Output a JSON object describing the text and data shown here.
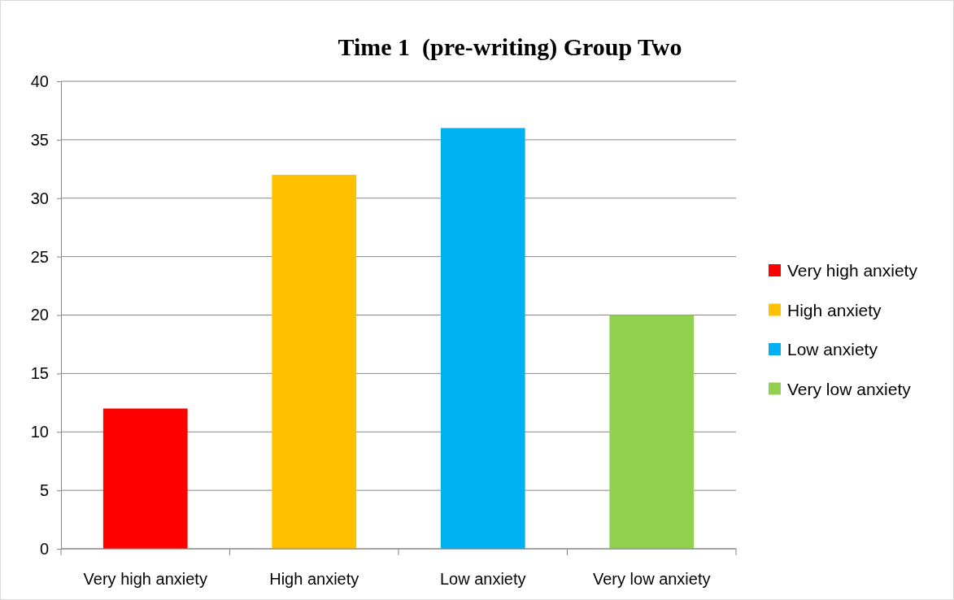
{
  "chart_data": {
    "type": "bar",
    "title": "Time 1  (pre-writing) Group Two",
    "categories": [
      "Very high anxiety",
      "High anxiety",
      "Low anxiety",
      "Very low anxiety"
    ],
    "series": [
      {
        "name": "Very high anxiety",
        "color": "#ff0000",
        "values": [
          12,
          null,
          null,
          null
        ]
      },
      {
        "name": "High anxiety",
        "color": "#ffc000",
        "values": [
          null,
          32,
          null,
          null
        ]
      },
      {
        "name": "Low anxiety",
        "color": "#00b0f0",
        "values": [
          null,
          null,
          36,
          null
        ]
      },
      {
        "name": "Very low anxiety",
        "color": "#92d050",
        "values": [
          null,
          null,
          null,
          20
        ]
      }
    ],
    "stacked": true,
    "ylim": [
      0,
      40
    ],
    "yticks": [
      0,
      5,
      10,
      15,
      20,
      25,
      30,
      35,
      40
    ],
    "grid": "y",
    "legend": "right"
  }
}
